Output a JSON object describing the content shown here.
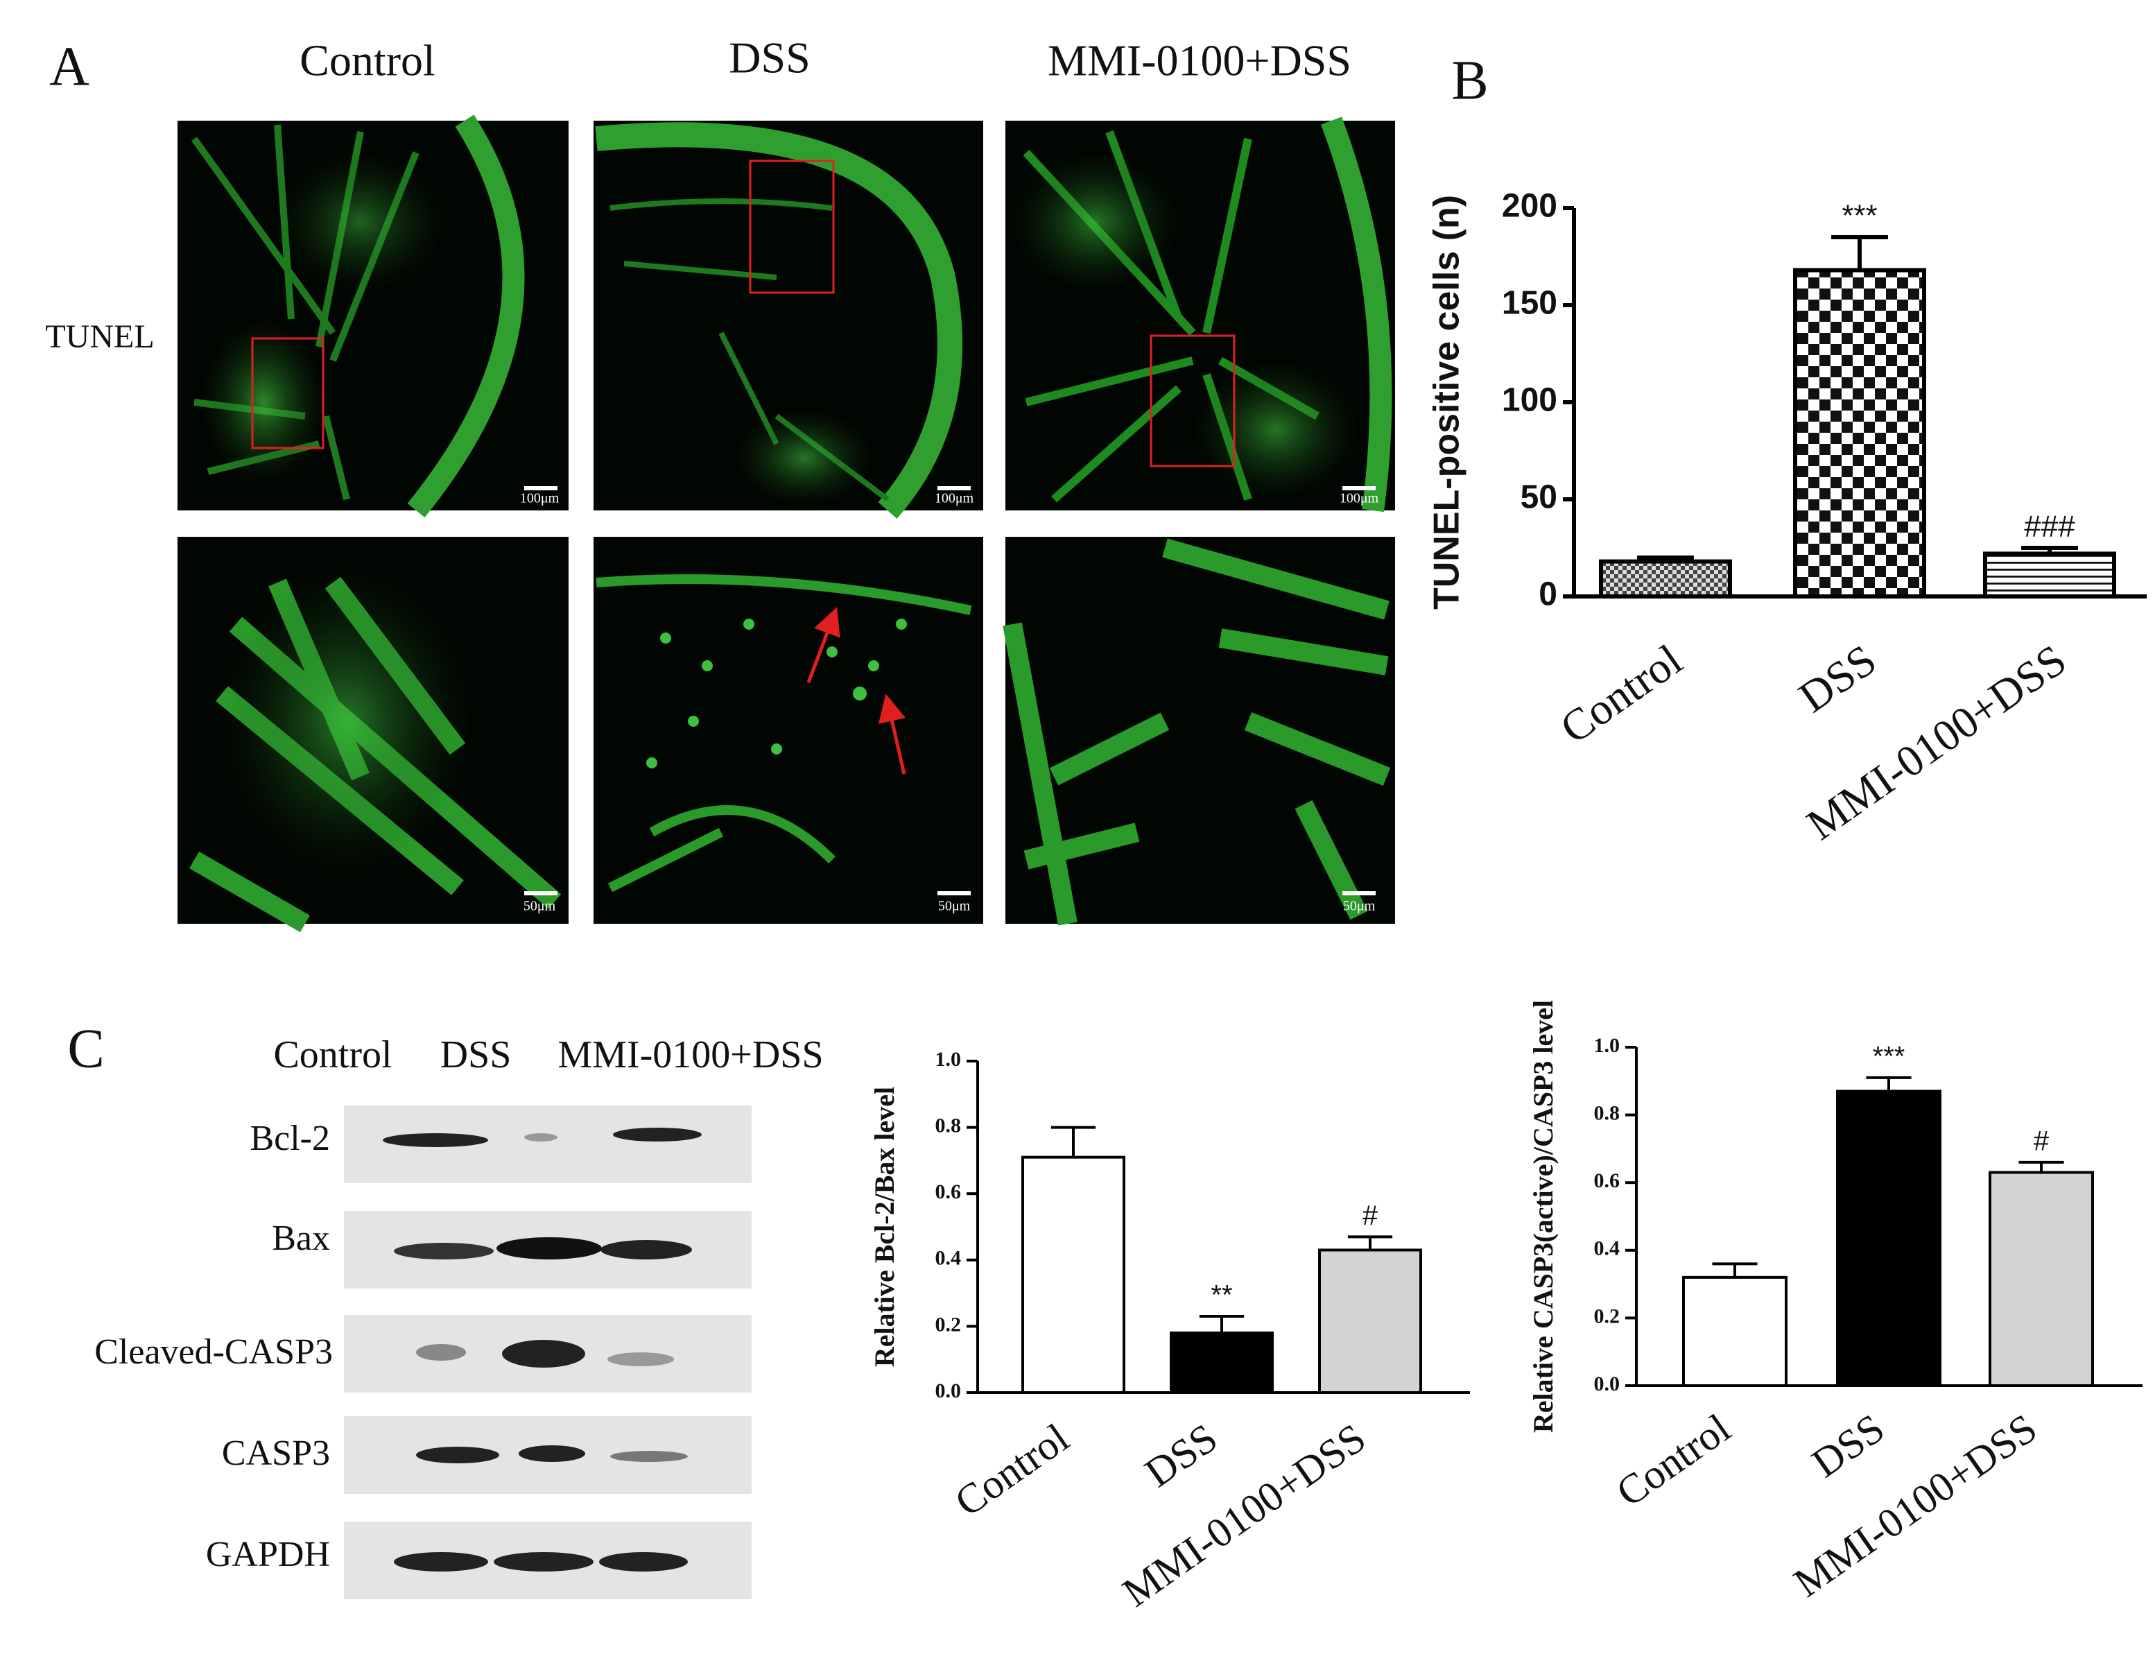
{
  "panel_labels": [
    "A",
    "B",
    "C"
  ],
  "tunel": {
    "groups": [
      "Control",
      "DSS",
      "MMI-0100+DSS"
    ],
    "stain": "TUNEL",
    "scale_bars": [
      "100μm",
      "50μm"
    ]
  },
  "blot": {
    "lanes": [
      "Control",
      "DSS",
      "MMI-0100+DSS"
    ],
    "proteins": [
      "Bcl-2",
      "Bax",
      "Cleaved-CASP3",
      "CASP3",
      "GAPDH"
    ]
  },
  "chart_data": [
    {
      "type": "bar",
      "ylabel": "TUNEL-positive cells (n)",
      "categories": [
        "Control",
        "DSS",
        "MMI-0100+DSS"
      ],
      "values": [
        18,
        168,
        22
      ],
      "errors": [
        2,
        17,
        3
      ],
      "annotations": [
        null,
        "***",
        "###"
      ],
      "patterns": [
        "checker-fine",
        "checker",
        "hlines"
      ],
      "ylim": [
        0,
        200
      ],
      "yticks": [
        0,
        50,
        100,
        150,
        200
      ]
    },
    {
      "type": "bar",
      "ylabel": "Relative Bcl-2/Bax level",
      "categories": [
        "Control",
        "DSS",
        "MMI-0100+DSS"
      ],
      "values": [
        0.71,
        0.18,
        0.43
      ],
      "errors": [
        0.09,
        0.05,
        0.04
      ],
      "annotations": [
        null,
        "**",
        "#"
      ],
      "colors": [
        "#ffffff",
        "#000000",
        "#d3d3d3"
      ],
      "ylim": [
        0,
        1.0
      ],
      "yticks": [
        {
          "value": 0,
          "label": "0.0"
        },
        0.2,
        0.4,
        0.6,
        0.8,
        {
          "value": 1,
          "label": "1.0"
        }
      ]
    },
    {
      "type": "bar",
      "ylabel": "Relative CASP3(active)/CASP3 level",
      "categories": [
        "Control",
        "DSS",
        "MMI-0100+DSS"
      ],
      "values": [
        0.32,
        0.87,
        0.63
      ],
      "errors": [
        0.04,
        0.04,
        0.03
      ],
      "annotations": [
        null,
        "***",
        "#"
      ],
      "colors": [
        "#ffffff",
        "#000000",
        "#d3d3d3"
      ],
      "ylim": [
        0,
        1.0
      ],
      "yticks": [
        {
          "value": 0,
          "label": "0.0"
        },
        0.2,
        0.4,
        0.6,
        0.8,
        {
          "value": 1,
          "label": "1.0"
        }
      ]
    }
  ]
}
